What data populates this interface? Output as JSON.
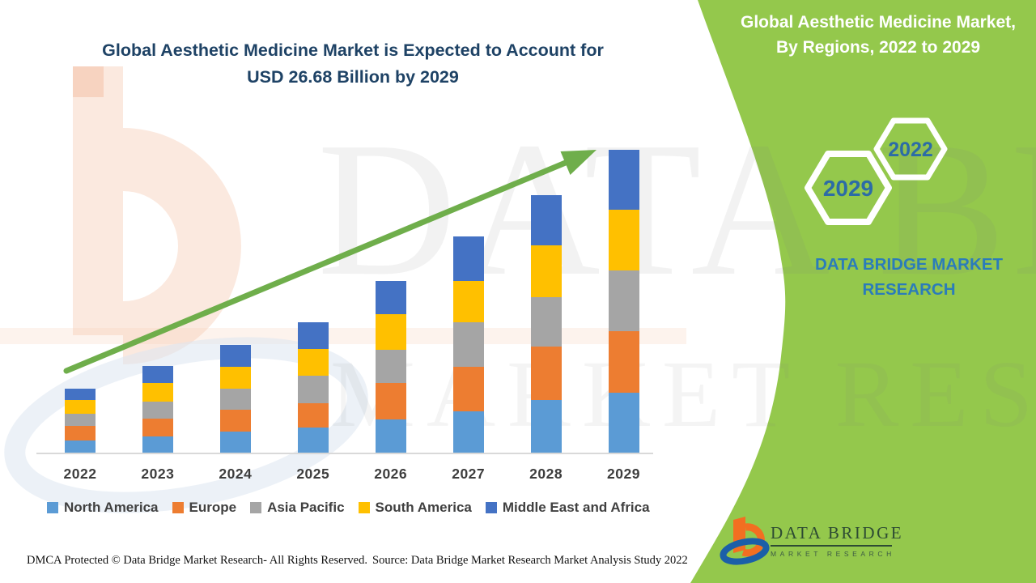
{
  "title": {
    "line1": "Global Aesthetic Medicine Market is Expected to Account for",
    "line2": "USD 26.68 Billion by 2029"
  },
  "panel": {
    "heading": "Global Aesthetic Medicine Market, By Regions, 2022 to 2029",
    "hexagon_front": "2029",
    "hexagon_back": "2022",
    "brand_text": "DATA BRIDGE MARKET RESEARCH"
  },
  "logo": {
    "name": "DATA BRIDGE",
    "subtitle": "MARKET RESEARCH"
  },
  "watermark": {
    "line1": "DATA BRIDGE",
    "line2": "MARKET RESEARCH"
  },
  "footer": {
    "left": "DMCA Protected © Data Bridge Market Research- All Rights Reserved.",
    "right": "Source: Data Bridge Market Research Market Analysis Study 2022"
  },
  "colors": {
    "panel_green": "#94c84c",
    "arrow_green": "#6fae4b",
    "title_blue": "#1e4265",
    "hexagon_text_blue": "#2c6ca6",
    "brand_blue": "#2b7cba",
    "axis_line": "#d9d9d9",
    "axis_label": "#3d3d3d",
    "legend_text": "#404040",
    "watermark_peach": "#fbe9df",
    "watermark_swoosh_blue": "#dde6f1"
  },
  "chart_data": {
    "type": "bar",
    "stacked": true,
    "title": "Global Aesthetic Medicine Market is Expected to Account for USD 26.68 Billion by 2029",
    "unit": "USD Billion",
    "categories": [
      "2022",
      "2023",
      "2024",
      "2025",
      "2026",
      "2027",
      "2028",
      "2029"
    ],
    "series": [
      {
        "name": "North America",
        "color": "#5B9BD5",
        "values": [
          1.12,
          1.47,
          1.89,
          2.25,
          2.96,
          3.67,
          4.67,
          5.34
        ]
      },
      {
        "name": "Europe",
        "color": "#ED7D31",
        "values": [
          1.3,
          1.59,
          1.95,
          2.18,
          3.2,
          3.96,
          4.7,
          5.38
        ]
      },
      {
        "name": "Asia Pacific",
        "color": "#A5A5A5",
        "values": [
          1.07,
          1.49,
          1.85,
          2.37,
          2.92,
          3.86,
          4.39,
          5.34
        ]
      },
      {
        "name": "South America",
        "color": "#FFC000",
        "values": [
          1.19,
          1.61,
          1.94,
          2.38,
          3.13,
          3.63,
          4.5,
          5.36
        ]
      },
      {
        "name": "Middle East and Africa",
        "color": "#4472C4",
        "values": [
          1.0,
          1.52,
          1.9,
          2.32,
          2.97,
          3.91,
          4.46,
          5.26
        ]
      }
    ],
    "totals": [
      5.68,
      7.68,
      9.53,
      11.5,
      15.18,
      19.03,
      22.72,
      26.68
    ],
    "ylim": [
      0,
      28
    ],
    "gridlines": false,
    "legend_position": "bottom",
    "trend_arrow": true
  }
}
